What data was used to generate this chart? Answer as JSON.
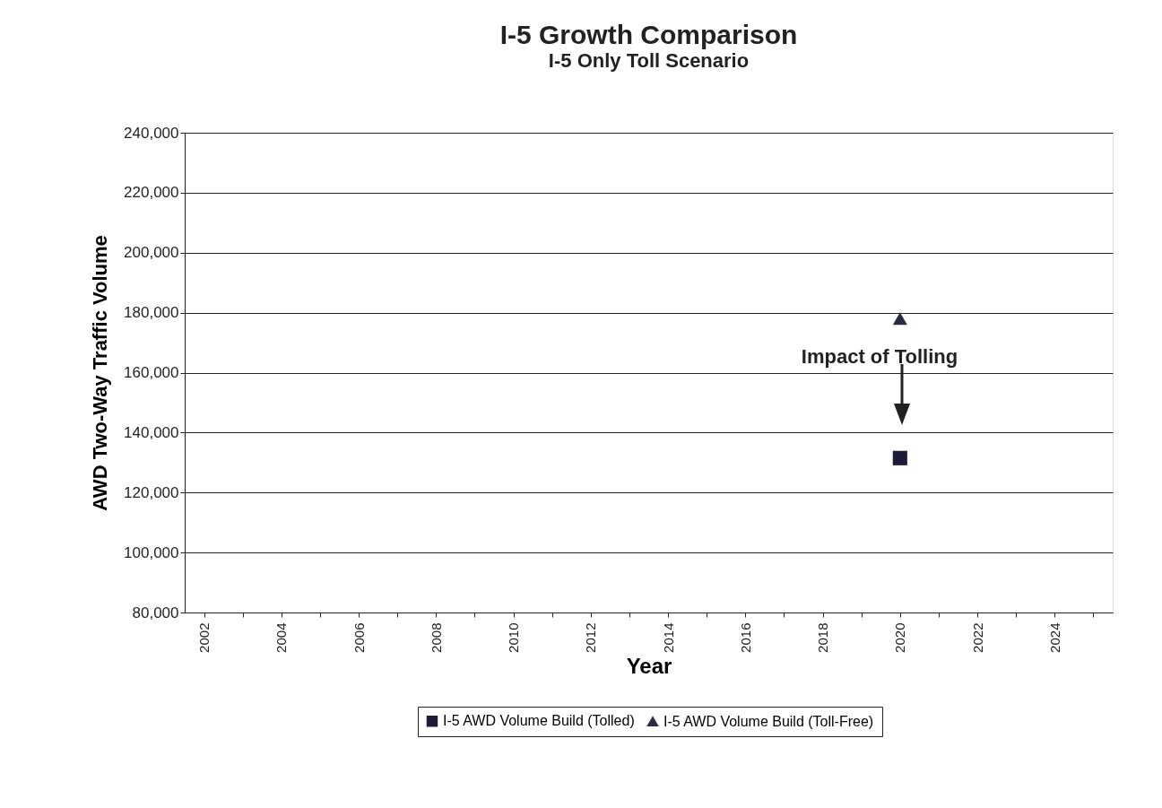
{
  "chart_data": {
    "type": "line",
    "title": "I-5 Growth Comparison",
    "subtitle": "I-5 Only Toll Scenario",
    "xlabel": "Year",
    "ylabel": "AWD Two-Way Traffic Volume",
    "categories": [
      "2002",
      null,
      "2004",
      null,
      "2006",
      null,
      "2008",
      null,
      "2010",
      null,
      "2012",
      null,
      "2014",
      null,
      "2016",
      null,
      "2018",
      null,
      "2020",
      null,
      "2022",
      null,
      "2024",
      null
    ],
    "series": [
      {
        "name": "I-5 AWD Volume Build (Tolled)",
        "color": "#1c1c3a",
        "marker": "square",
        "values": [
          null,
          null,
          null,
          null,
          null,
          null,
          null,
          null,
          null,
          null,
          null,
          null,
          null,
          null,
          null,
          null,
          null,
          null,
          131500,
          null,
          null,
          null,
          null,
          null
        ]
      },
      {
        "name": "I-5 AWD Volume Build (Toll-Free)",
        "color": "#2a2a44",
        "marker": "triangle",
        "values": [
          null,
          null,
          null,
          null,
          null,
          null,
          null,
          null,
          null,
          null,
          null,
          null,
          null,
          null,
          null,
          null,
          null,
          null,
          178000,
          null,
          null,
          null,
          null,
          null
        ]
      }
    ],
    "annotations": [
      "Impact of  Tolling"
    ],
    "ylim": [
      80000,
      240000
    ],
    "yticks": [
      {
        "value": 80000,
        "label": "80,000"
      },
      {
        "value": 100000,
        "label": "100,000"
      },
      {
        "value": 120000,
        "label": "120,000"
      },
      {
        "value": 140000,
        "label": "140,000"
      },
      {
        "value": 160000,
        "label": "160,000"
      },
      {
        "value": 180000,
        "label": "180,000"
      },
      {
        "value": 200000,
        "label": "200,000"
      },
      {
        "value": 220000,
        "label": "220,000"
      },
      {
        "value": 240000,
        "label": "240,000"
      }
    ],
    "grid": "y",
    "legend": "bottom"
  }
}
